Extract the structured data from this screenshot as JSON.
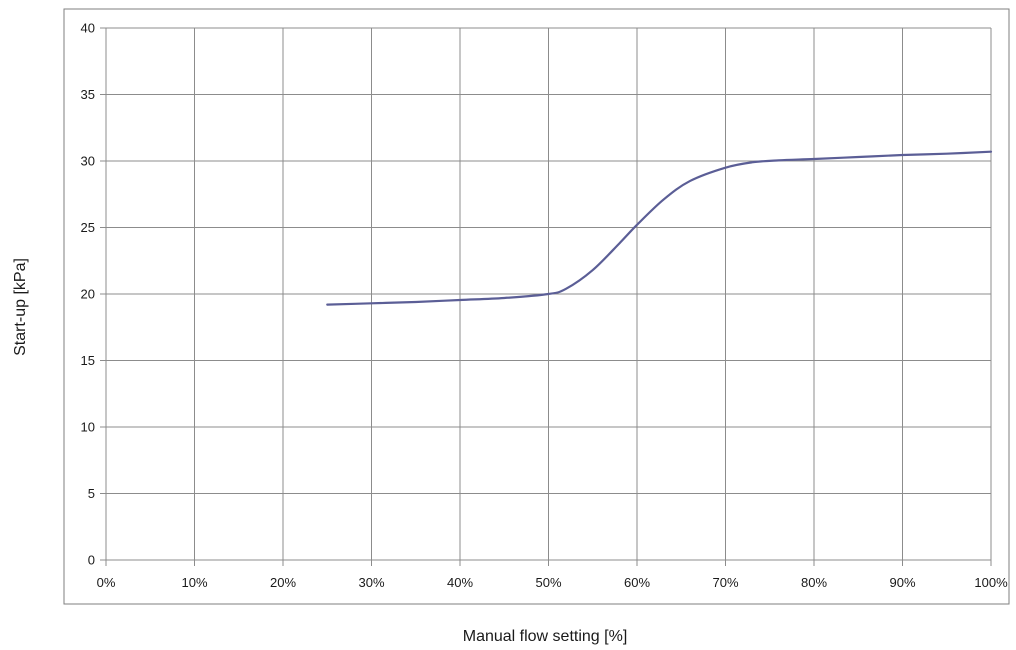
{
  "chart_data": {
    "type": "line",
    "title": "",
    "xlabel": "Manual flow setting [%]",
    "ylabel": "Start-up [kPa]",
    "xlim": [
      0,
      100
    ],
    "ylim": [
      0,
      40
    ],
    "x_ticks": [
      0,
      10,
      20,
      30,
      40,
      50,
      60,
      70,
      80,
      90,
      100
    ],
    "x_tick_labels": [
      "0%",
      "10%",
      "20%",
      "30%",
      "40%",
      "50%",
      "60%",
      "70%",
      "80%",
      "90%",
      "100%"
    ],
    "y_ticks": [
      0,
      5,
      10,
      15,
      20,
      25,
      30,
      35,
      40
    ],
    "y_tick_labels": [
      "0",
      "5",
      "10",
      "15",
      "20",
      "25",
      "30",
      "35",
      "40"
    ],
    "grid": true,
    "legend": "none",
    "series": [
      {
        "color": "#5b5e96",
        "x": [
          25,
          30,
          35,
          40,
          45,
          50,
          52,
          55,
          58,
          60,
          63,
          66,
          70,
          73,
          76,
          80,
          85,
          90,
          95,
          100
        ],
        "y": [
          19.2,
          19.3,
          19.4,
          19.55,
          19.7,
          20.0,
          20.4,
          21.8,
          23.8,
          25.2,
          27.1,
          28.5,
          29.5,
          29.9,
          30.05,
          30.15,
          30.3,
          30.45,
          30.55,
          30.7
        ]
      }
    ]
  }
}
